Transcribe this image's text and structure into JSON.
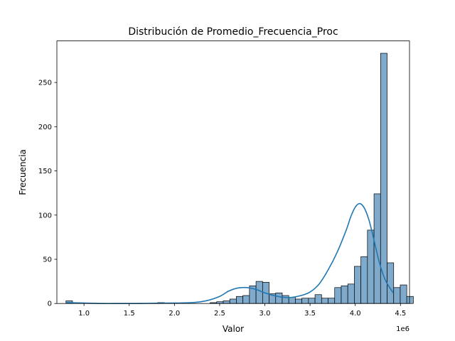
{
  "chart_data": {
    "type": "histogram",
    "title": "Distribución de Promedio_Frecuencia_Proc",
    "xlabel": "Valor",
    "ylabel": "Frecuencia",
    "x_offset_label": "1e6",
    "xlim": [
      0.7,
      4.6
    ],
    "ylim": [
      0,
      297
    ],
    "x_ticks": [
      1.0,
      1.5,
      2.0,
      2.5,
      3.0,
      3.5,
      4.0,
      4.5
    ],
    "x_tick_labels": [
      "1.0",
      "1.5",
      "2.0",
      "2.5",
      "3.0",
      "3.5",
      "4.0",
      "4.5"
    ],
    "y_ticks": [
      0,
      50,
      100,
      150,
      200,
      250
    ],
    "y_tick_labels": [
      "0",
      "50",
      "100",
      "150",
      "200",
      "250"
    ],
    "bin_start": 0.8,
    "bin_width": 0.0725,
    "counts": [
      3,
      0,
      0,
      0,
      0,
      0,
      0,
      0,
      0,
      0,
      0,
      0,
      0,
      0,
      1,
      0,
      0,
      0,
      0,
      0,
      0,
      0,
      1,
      2,
      3,
      5,
      8,
      9,
      20,
      25,
      24,
      11,
      12,
      9,
      7,
      5,
      6,
      6,
      10,
      6,
      6,
      18,
      20,
      22,
      42,
      53,
      83,
      124,
      283,
      46,
      18,
      21,
      8
    ],
    "kde": {
      "x": [
        0.8,
        1.0,
        1.2,
        1.4,
        1.6,
        1.8,
        2.0,
        2.2,
        2.35,
        2.5,
        2.6,
        2.7,
        2.8,
        2.9,
        3.0,
        3.1,
        3.2,
        3.3,
        3.4,
        3.5,
        3.6,
        3.7,
        3.8,
        3.9,
        3.95,
        4.0,
        4.05,
        4.1,
        4.15,
        4.2,
        4.25,
        4.3,
        4.35,
        4.42
      ],
      "y": [
        1,
        0.5,
        0,
        0,
        0,
        0.3,
        0.5,
        1,
        3,
        8,
        14,
        17.5,
        18,
        16,
        12,
        9,
        7,
        7,
        9,
        13,
        22,
        38,
        58,
        83,
        98,
        109,
        113,
        108,
        95,
        75,
        53,
        35,
        23,
        12
      ]
    }
  },
  "colors": {
    "bar_fill": "#7faacc",
    "bar_edge": "#000000",
    "kde_line": "#1f77b4"
  }
}
